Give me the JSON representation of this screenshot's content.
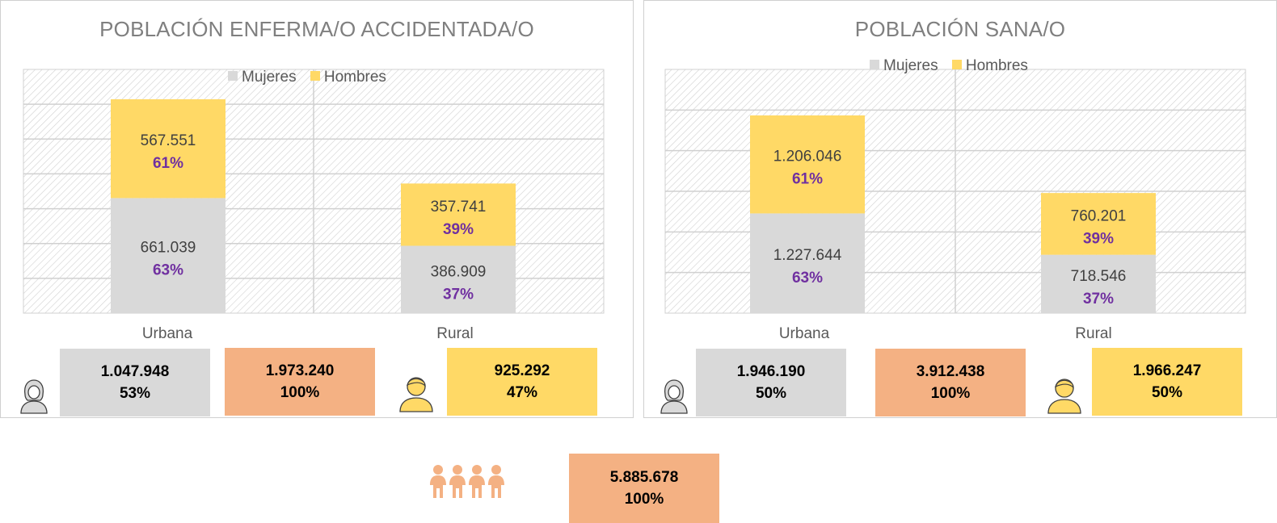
{
  "colors": {
    "mujeres": "#d9d9d9",
    "hombres": "#ffd966",
    "total": "#f4b183",
    "pct": "#7030a0",
    "value": "#404040"
  },
  "legend": {
    "mujeres": "Mujeres",
    "hombres": "Hombres"
  },
  "icons": {
    "female": "female-person-icon",
    "male": "male-person-icon",
    "group": "group-people-icon"
  },
  "chart_data": [
    {
      "type": "bar",
      "stacked": true,
      "title": "POBLACIÓN ENFERMA/O ACCIDENTADA/O",
      "categories": [
        "Urbana",
        "Rural"
      ],
      "series": [
        {
          "name": "Mujeres",
          "values": [
            661039,
            386909
          ],
          "labels": [
            "661.039",
            "386.909"
          ],
          "pct": [
            "63%",
            "37%"
          ]
        },
        {
          "name": "Hombres",
          "values": [
            567551,
            357741
          ],
          "labels": [
            "567.551",
            "357.741"
          ],
          "pct": [
            "61%",
            "39%"
          ]
        }
      ],
      "ylim": [
        0,
        1400000
      ],
      "grid": true,
      "legend_position": "top",
      "summary": {
        "mujeres": {
          "value": "1.047.948",
          "pct": "53%"
        },
        "total": {
          "value": "1.973.240",
          "pct": "100%"
        },
        "hombres": {
          "value": "925.292",
          "pct": "47%"
        }
      }
    },
    {
      "type": "bar",
      "stacked": true,
      "title": "POBLACIÓN SANA/O",
      "categories": [
        "Urbana",
        "Rural"
      ],
      "series": [
        {
          "name": "Mujeres",
          "values": [
            1227644,
            718546
          ],
          "labels": [
            "1.227.644",
            "718.546"
          ],
          "pct": [
            "63%",
            "37%"
          ]
        },
        {
          "name": "Hombres",
          "values": [
            1206046,
            760201
          ],
          "labels": [
            "1.206.046",
            "760.201"
          ],
          "pct": [
            "61%",
            "39%"
          ]
        }
      ],
      "ylim": [
        0,
        3000000
      ],
      "grid": true,
      "legend_position": "top",
      "summary": {
        "mujeres": {
          "value": "1.946.190",
          "pct": "50%"
        },
        "total": {
          "value": "3.912.438",
          "pct": "100%"
        },
        "hombres": {
          "value": "1.966.247",
          "pct": "50%"
        }
      }
    }
  ],
  "grand_total": {
    "value": "5.885.678",
    "pct": "100%"
  }
}
